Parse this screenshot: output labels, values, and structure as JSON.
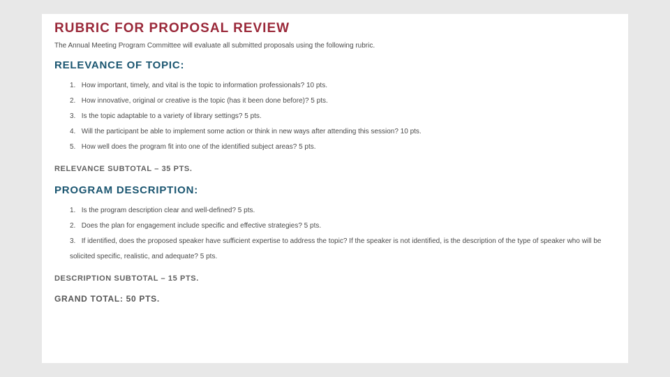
{
  "title": "RUBRIC FOR PROPOSAL REVIEW",
  "intro": "The Annual Meeting Program Committee will evaluate all submitted proposals using the following rubric.",
  "sections": [
    {
      "heading": "RELEVANCE OF TOPIC:",
      "criteria": [
        "How important, timely, and vital is the topic to information professionals?  10 pts.",
        "How innovative, original or creative is the topic (has it been done before)? 5 pts.",
        "Is the topic adaptable to a variety of library settings?  5 pts.",
        "Will the participant be able to implement some action or think in new ways after attending this session?  10 pts.",
        "How well does the program fit into one of the identified subject areas?  5 pts."
      ],
      "subtotal": "RELEVANCE SUBTOTAL – 35 PTS."
    },
    {
      "heading": "PROGRAM DESCRIPTION:",
      "criteria": [
        "Is the program description clear and well-defined?  5 pts.",
        "Does the plan for engagement include specific and effective strategies? 5 pts.",
        "If identified, does the proposed speaker have sufficient expertise to address the topic?  If the speaker is not identified, is the description of the type of speaker who will be solicited specific, realistic, and adequate? 5 pts."
      ],
      "subtotal": "DESCRIPTION SUBTOTAL – 15 PTS."
    }
  ],
  "grand_total": "GRAND TOTAL:  50 PTS.",
  "colors": {
    "page_bg": "#e8e8e8",
    "doc_bg": "#ffffff",
    "title_color": "#9a2839",
    "heading_color": "#1a5570",
    "body_text": "#4a4a4a",
    "subtotal_color": "#606060"
  },
  "typography": {
    "title_fontsize": 19,
    "heading_fontsize": 15,
    "body_fontsize": 10,
    "subtotal_fontsize": 11,
    "grand_total_fontsize": 12
  }
}
